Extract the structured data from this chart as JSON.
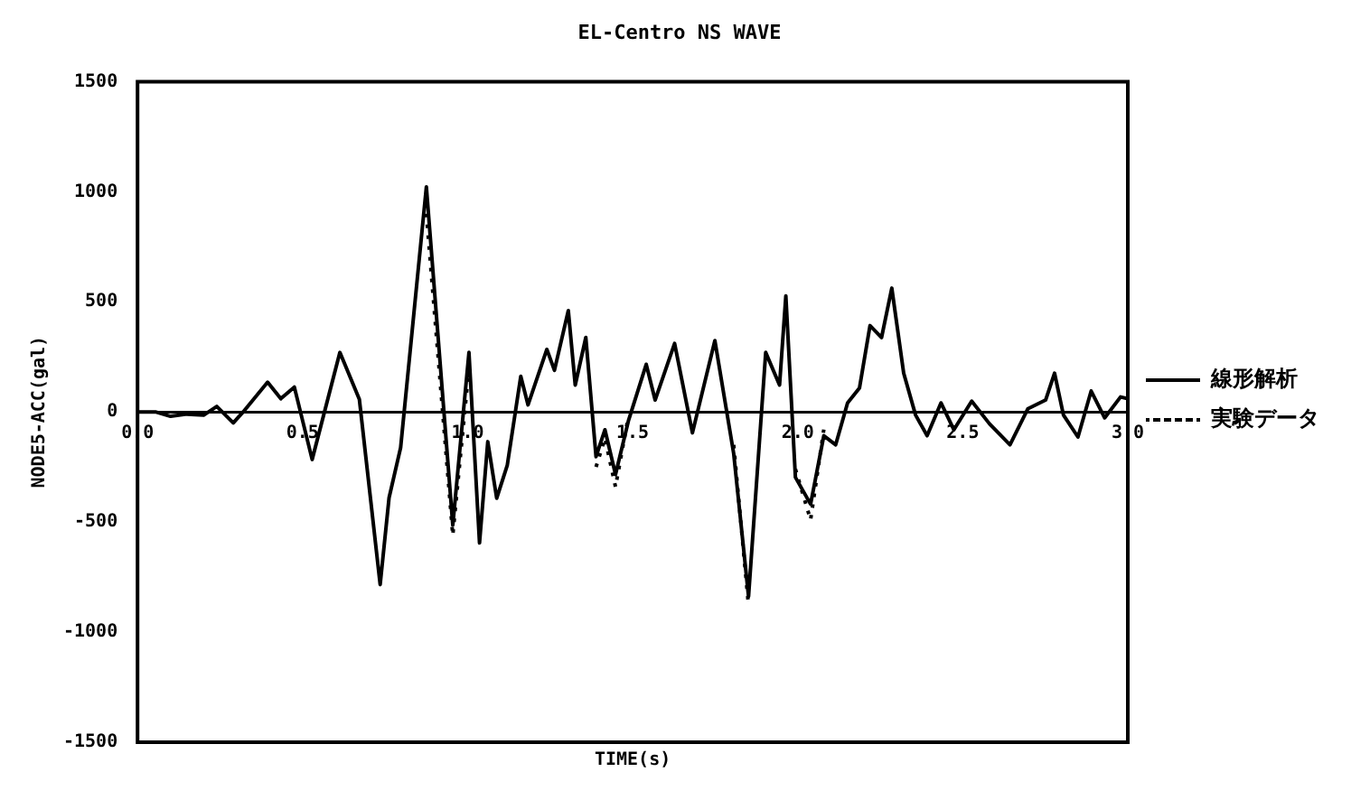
{
  "chart_data": {
    "type": "line",
    "title": "EL-Centro NS WAVE",
    "xlabel": "TIME(s)",
    "ylabel": "NODE5-ACC(gal)",
    "xlim": [
      0,
      3
    ],
    "xticks": [
      {
        "value": 0,
        "label": "0.0"
      },
      {
        "value": 0.5,
        "label": "0.5"
      },
      {
        "value": 1,
        "label": "1.0"
      },
      {
        "value": 1.5,
        "label": "1.5"
      },
      {
        "value": 2,
        "label": "2.0"
      },
      {
        "value": 2.5,
        "label": "2.5"
      },
      {
        "value": 3,
        "label": "3.0"
      }
    ],
    "ylim": [
      -1500,
      1500
    ],
    "yticks": [
      -1500,
      -1000,
      -500,
      0,
      500,
      1000,
      1500
    ],
    "grid": false,
    "legend": "right",
    "marker": "none",
    "x": [
      0,
      0.054,
      0.1,
      0.15,
      0.2,
      0.24,
      0.29,
      0.32,
      0.394,
      0.434,
      0.475,
      0.529,
      0.613,
      0.672,
      0.735,
      0.762,
      0.797,
      0.875,
      0.955,
      1.004,
      1.036,
      1.061,
      1.088,
      1.12,
      1.161,
      1.183,
      1.24,
      1.263,
      1.305,
      1.326,
      1.358,
      1.389,
      1.416,
      1.448,
      1.487,
      1.541,
      1.568,
      1.627,
      1.681,
      1.749,
      1.806,
      1.851,
      1.903,
      1.945,
      1.964,
      1.993,
      2.039,
      2.079,
      2.115,
      2.151,
      2.187,
      2.219,
      2.254,
      2.285,
      2.321,
      2.357,
      2.392,
      2.434,
      2.473,
      2.527,
      2.581,
      2.643,
      2.697,
      2.751,
      2.778,
      2.805,
      2.849,
      2.889,
      2.93,
      2.978,
      3.0
    ],
    "series": [
      {
        "name": "線形解析",
        "color": "#000000",
        "line_style": "solid",
        "values": [
          0,
          0,
          -20,
          -10,
          -15,
          25,
          -50,
          0,
          135,
          60,
          113,
          -216,
          270,
          57,
          -784,
          -390,
          -162,
          1022,
          -514,
          270,
          -595,
          -135,
          -392,
          -243,
          162,
          32,
          284,
          189,
          460,
          122,
          338,
          -203,
          -81,
          -284,
          -41,
          216,
          54,
          311,
          -95,
          324,
          -189,
          -838,
          270,
          122,
          527,
          -297,
          -419,
          -108,
          -149,
          41,
          108,
          392,
          338,
          562,
          176,
          -14,
          -108,
          41,
          -81,
          49,
          -54,
          -149,
          14,
          54,
          176,
          -14,
          -114,
          95,
          -27,
          68,
          60
        ]
      },
      {
        "name": "実験データ",
        "color": "#000000",
        "line_style": "dotted",
        "values": [
          null,
          null,
          null,
          null,
          null,
          null,
          null,
          null,
          null,
          null,
          null,
          null,
          null,
          null,
          null,
          null,
          null,
          900,
          -560,
          200,
          null,
          null,
          null,
          null,
          null,
          null,
          null,
          null,
          null,
          null,
          null,
          -250,
          -120,
          -340,
          -20,
          null,
          null,
          null,
          null,
          null,
          -150,
          -880,
          null,
          null,
          null,
          -260,
          -490,
          -80,
          null,
          null,
          null,
          null,
          null,
          null,
          null,
          null,
          null,
          null,
          null,
          null,
          null,
          null,
          null,
          null,
          null,
          null,
          null,
          null,
          null,
          null,
          null
        ]
      }
    ]
  }
}
